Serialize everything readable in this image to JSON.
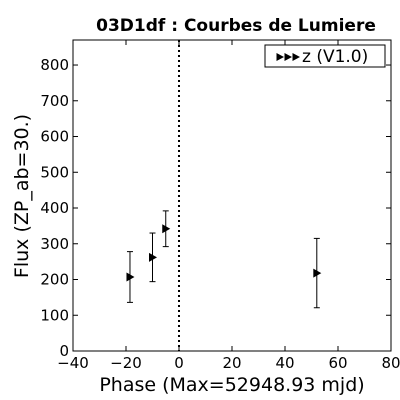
{
  "chart_data": {
    "type": "scatter",
    "title": "03D1df : Courbes de Lumiere",
    "xlabel": "Phase (Max=52948.93 mjd)",
    "ylabel": "Flux (ZP_ab=30.)",
    "xlim": [
      -40,
      80
    ],
    "ylim": [
      0,
      870
    ],
    "x_ticks": [
      -40,
      -20,
      0,
      20,
      40,
      60,
      80
    ],
    "y_ticks": [
      0,
      100,
      200,
      300,
      400,
      500,
      600,
      700,
      800
    ],
    "grid": false,
    "legend_position": "top-right",
    "reference_line_x": 0,
    "series": [
      {
        "name": "z (V1.0)",
        "color": "#000000",
        "marker": "triangle-right",
        "x": [
          -18.5,
          -10,
          -5,
          52
        ],
        "y": [
          207,
          262,
          342,
          218
        ],
        "yerr": [
          71,
          68,
          50,
          97
        ]
      }
    ]
  }
}
